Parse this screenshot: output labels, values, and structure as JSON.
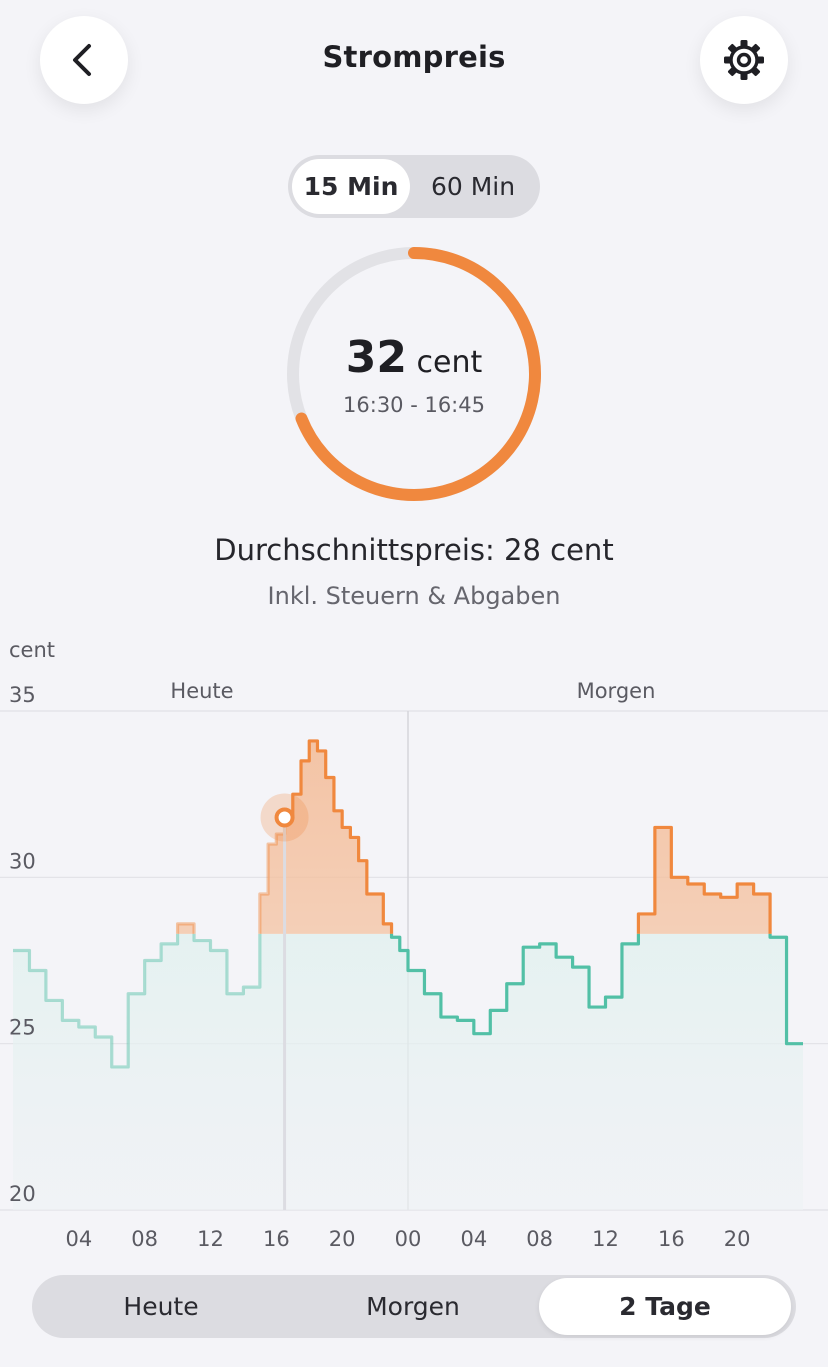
{
  "header": {
    "title": "Strompreis",
    "back_icon": "chevron-left-icon",
    "settings_icon": "gear-icon"
  },
  "interval_toggle": {
    "options": [
      "15 Min",
      "60 Min"
    ],
    "selected": "15 Min"
  },
  "current": {
    "value": "32",
    "unit": "cent",
    "time": "16:30 - 16:45",
    "progress": 0.69
  },
  "average": {
    "label": "Durchschnittspreis: 28 cent",
    "note": "Inkl. Steuern & Abgaben"
  },
  "colors": {
    "orange": "#f0883e",
    "teal": "#52c0a6",
    "track": "#e2e2e6"
  },
  "chart_data": {
    "type": "area",
    "ylabel": "cent",
    "ylim": [
      20,
      35
    ],
    "yticks": [
      "35",
      "30",
      "25",
      "20"
    ],
    "xticks": [
      "04",
      "08",
      "12",
      "16",
      "20",
      "00",
      "04",
      "08",
      "12",
      "16",
      "20"
    ],
    "day_labels": [
      "Heute",
      "Morgen"
    ],
    "threshold": 28.3,
    "current_hour": 16.5,
    "current_price": 31.8,
    "series": [
      {
        "x": [
          0,
          1,
          2,
          3,
          4,
          5,
          6,
          7,
          8,
          9,
          10,
          11,
          12,
          13,
          14,
          15,
          15.5,
          16,
          16.5,
          17,
          17.5,
          18,
          18.5,
          19,
          19.5,
          20,
          20.5,
          21,
          21.5,
          22,
          22.5,
          23,
          23.5,
          24,
          25,
          26,
          27,
          28,
          29,
          30,
          31,
          32,
          33,
          34,
          35,
          36,
          37,
          38,
          39,
          40,
          41,
          42,
          43,
          44,
          45,
          46,
          47
        ],
        "values": [
          27.8,
          27.2,
          26.3,
          25.7,
          25.5,
          25.2,
          24.3,
          26.5,
          27.5,
          28.0,
          28.6,
          28.1,
          27.8,
          26.5,
          26.7,
          29.5,
          31.0,
          31.3,
          31.8,
          32.5,
          33.5,
          34.1,
          33.8,
          33.0,
          32.0,
          31.5,
          31.2,
          30.5,
          29.5,
          29.5,
          28.6,
          28.2,
          27.8,
          27.2,
          26.5,
          25.8,
          25.7,
          25.3,
          26.0,
          26.8,
          27.9,
          28.0,
          27.6,
          27.3,
          26.1,
          26.4,
          28.0,
          28.9,
          31.5,
          30.0,
          29.8,
          29.5,
          29.4,
          29.8,
          29.5,
          28.2,
          25.0
        ]
      }
    ]
  }
}
